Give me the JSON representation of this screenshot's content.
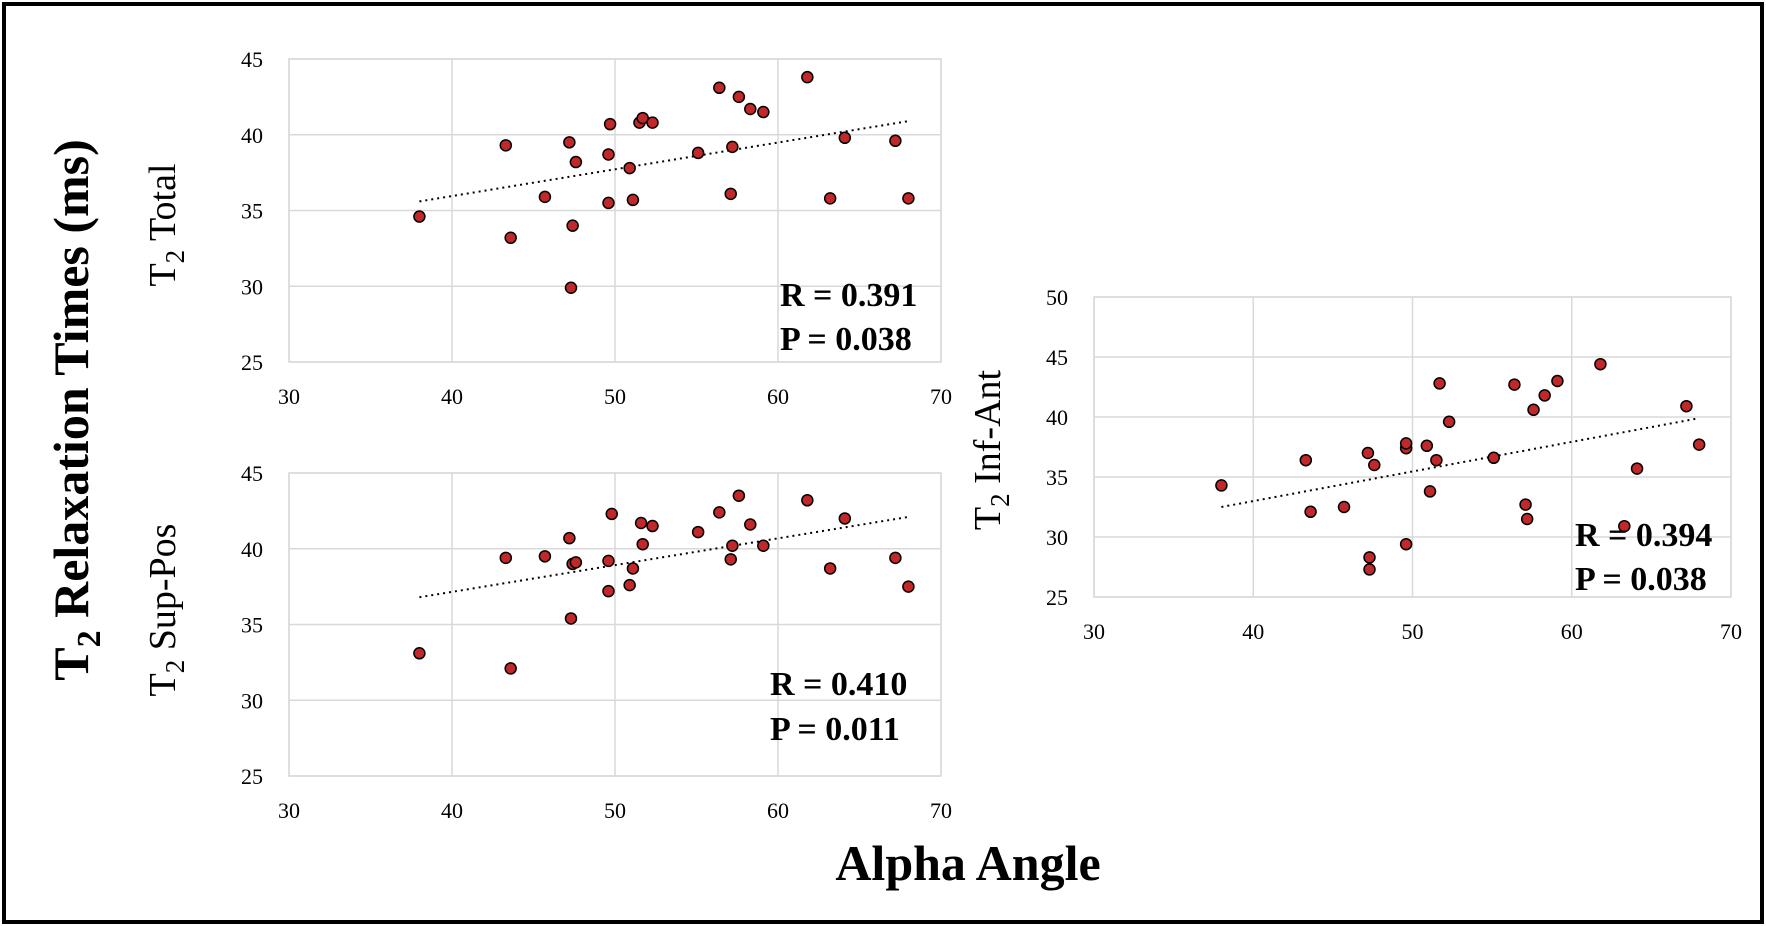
{
  "figure": {
    "ylabel_main": "T",
    "ylabel_main_sub": "2",
    "ylabel_main_rest": " Relaxation Times (ms)",
    "xlabel_main": "Alpha Angle",
    "colors": {
      "point": "#c0282a",
      "grid": "#d9d9d9",
      "trend": "#000000"
    }
  },
  "chart_data": [
    {
      "type": "scatter",
      "id": "total",
      "ylabel": "T",
      "ylabel_sub": "2",
      "ylabel_rest": " Total",
      "xlim": [
        30,
        70
      ],
      "ylim": [
        25,
        45
      ],
      "xticks": [
        "30",
        "40",
        "50",
        "60",
        "70"
      ],
      "yticks": [
        "25",
        "30",
        "35",
        "40",
        "45"
      ],
      "x_step": 10,
      "y_step": 5,
      "stat_r": "R = 0.391",
      "stat_p": "P = 0.038",
      "trend": [
        [
          38,
          35.6
        ],
        [
          68,
          40.9
        ]
      ],
      "points": [
        [
          38,
          34.6
        ],
        [
          43.3,
          39.3
        ],
        [
          43.6,
          33.2
        ],
        [
          45.7,
          35.9
        ],
        [
          47.2,
          39.5
        ],
        [
          47.3,
          29.9
        ],
        [
          47.4,
          34.0
        ],
        [
          47.6,
          38.2
        ],
        [
          49.6,
          38.7
        ],
        [
          49.6,
          35.5
        ],
        [
          49.7,
          40.7
        ],
        [
          50.9,
          37.8
        ],
        [
          51.1,
          35.7
        ],
        [
          51.5,
          40.8
        ],
        [
          51.7,
          41.1
        ],
        [
          52.3,
          40.8
        ],
        [
          55.1,
          38.8
        ],
        [
          56.4,
          43.1
        ],
        [
          57.1,
          36.1
        ],
        [
          57.2,
          39.2
        ],
        [
          57.6,
          42.5
        ],
        [
          58.3,
          41.7
        ],
        [
          59.1,
          41.5
        ],
        [
          61.8,
          43.8
        ],
        [
          63.2,
          35.8
        ],
        [
          64.1,
          39.8
        ],
        [
          67.2,
          39.6
        ],
        [
          68,
          35.8
        ]
      ]
    },
    {
      "type": "scatter",
      "id": "suppos",
      "ylabel": "T",
      "ylabel_sub": "2",
      "ylabel_rest": " Sup-Pos",
      "xlim": [
        30,
        70
      ],
      "ylim": [
        25,
        45
      ],
      "xticks": [
        "30",
        "40",
        "50",
        "60",
        "70"
      ],
      "yticks": [
        "25",
        "30",
        "35",
        "40",
        "45"
      ],
      "x_step": 10,
      "y_step": 5,
      "stat_r": "R = 0.410",
      "stat_p": "P = 0.011",
      "trend": [
        [
          38,
          36.8
        ],
        [
          68,
          42.1
        ]
      ],
      "points": [
        [
          38,
          33.1
        ],
        [
          43.3,
          39.4
        ],
        [
          43.6,
          32.1
        ],
        [
          45.7,
          39.5
        ],
        [
          47.2,
          40.7
        ],
        [
          47.3,
          35.4
        ],
        [
          47.4,
          39.0
        ],
        [
          47.6,
          39.1
        ],
        [
          49.6,
          37.2
        ],
        [
          49.6,
          39.2
        ],
        [
          49.8,
          42.3
        ],
        [
          50.9,
          37.6
        ],
        [
          51.1,
          38.7
        ],
        [
          51.6,
          41.7
        ],
        [
          51.7,
          40.3
        ],
        [
          52.3,
          41.5
        ],
        [
          55.1,
          41.1
        ],
        [
          56.4,
          42.4
        ],
        [
          57.1,
          39.3
        ],
        [
          57.2,
          40.2
        ],
        [
          57.6,
          43.5
        ],
        [
          58.3,
          41.6
        ],
        [
          59.1,
          40.2
        ],
        [
          61.8,
          43.2
        ],
        [
          63.2,
          38.7
        ],
        [
          64.1,
          42.0
        ],
        [
          67.2,
          39.4
        ],
        [
          68,
          37.5
        ]
      ]
    },
    {
      "type": "scatter",
      "id": "infant",
      "ylabel": "T",
      "ylabel_sub": "2",
      "ylabel_rest": " Inf-Ant",
      "xlim": [
        30,
        70
      ],
      "ylim": [
        25,
        50
      ],
      "xticks": [
        "30",
        "40",
        "50",
        "60",
        "70"
      ],
      "yticks": [
        "25",
        "30",
        "35",
        "40",
        "45",
        "50"
      ],
      "x_step": 10,
      "y_step": 5,
      "stat_r": "R = 0.394",
      "stat_p": "P = 0.038",
      "trend": [
        [
          38,
          32.5
        ],
        [
          68,
          39.9
        ]
      ],
      "points": [
        [
          38,
          34.3
        ],
        [
          43.3,
          36.4
        ],
        [
          43.6,
          32.1
        ],
        [
          45.7,
          32.5
        ],
        [
          47.2,
          37.0
        ],
        [
          47.3,
          27.3
        ],
        [
          47.3,
          28.3
        ],
        [
          47.6,
          36.0
        ],
        [
          49.6,
          37.4
        ],
        [
          49.6,
          37.8
        ],
        [
          49.6,
          29.4
        ],
        [
          50.9,
          37.6
        ],
        [
          51.1,
          33.8
        ],
        [
          51.5,
          36.4
        ],
        [
          51.7,
          42.8
        ],
        [
          52.3,
          39.6
        ],
        [
          55.1,
          36.6
        ],
        [
          56.4,
          42.7
        ],
        [
          57.1,
          32.7
        ],
        [
          57.2,
          31.5
        ],
        [
          57.6,
          40.6
        ],
        [
          58.3,
          41.8
        ],
        [
          59.1,
          43.0
        ],
        [
          61.8,
          44.4
        ],
        [
          63.3,
          30.9
        ],
        [
          64.1,
          35.7
        ],
        [
          67.2,
          40.9
        ],
        [
          68,
          37.7
        ]
      ]
    }
  ]
}
